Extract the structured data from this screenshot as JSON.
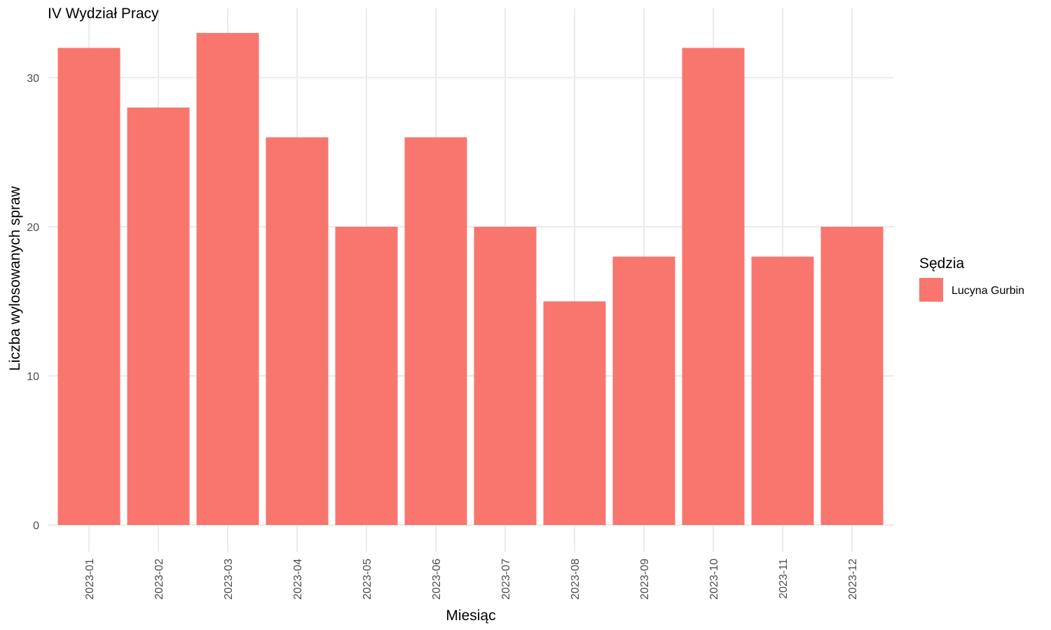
{
  "chart_data": {
    "type": "bar",
    "title": "IV Wydział Pracy",
    "xlabel": "Miesiąc",
    "ylabel": "Liczba wylosowanych spraw",
    "categories": [
      "2023-01",
      "2023-02",
      "2023-03",
      "2023-04",
      "2023-05",
      "2023-06",
      "2023-07",
      "2023-08",
      "2023-09",
      "2023-10",
      "2023-11",
      "2023-12"
    ],
    "series": [
      {
        "name": "Lucyna Gurbin",
        "color": "#F8766D",
        "values": [
          32,
          28,
          33,
          26,
          20,
          26,
          20,
          15,
          18,
          32,
          18,
          20
        ]
      }
    ],
    "ylim": [
      0,
      33
    ],
    "yticks": [
      0,
      10,
      20,
      30
    ],
    "grid": true,
    "legend": {
      "title": "Sędzia",
      "position": "right"
    }
  }
}
